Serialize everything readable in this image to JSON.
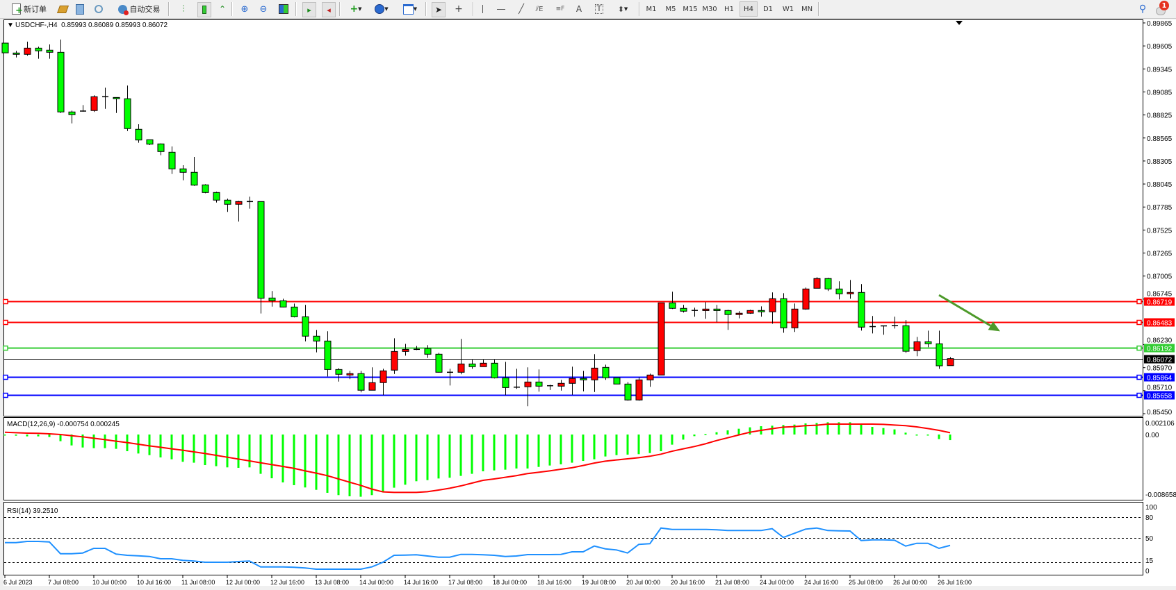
{
  "toolbar": {
    "new_order_label": "新订单",
    "autotrade_label": "自动交易",
    "timeframes": [
      "M1",
      "M5",
      "M15",
      "M30",
      "H1",
      "H4",
      "D1",
      "W1",
      "MN"
    ],
    "active_timeframe": "H4",
    "notification_count": "1",
    "icons": [
      "new-order-icon",
      "history-icon",
      "terminal-icon",
      "signals-icon",
      "autotrade-icon",
      "bar-chart-icon",
      "candlestick-icon",
      "line-chart-icon",
      "zoom-in-icon",
      "zoom-out-icon",
      "tile-windows-icon",
      "chart-shift-icon",
      "autoscroll-icon",
      "indicators-icon",
      "periods-icon",
      "templates-icon",
      "cursor-icon",
      "crosshair-icon",
      "vertical-line-icon",
      "horizontal-line-icon",
      "trendline-icon",
      "equidistant-channel-icon",
      "fibonacci-icon",
      "text-icon",
      "text-label-icon",
      "arrows-icon",
      "search-icon",
      "notification-icon"
    ]
  },
  "chart": {
    "header": "USDCHF-,H4  0.85993 0.86089 0.85993 0.86072",
    "macd_header": "MACD(12,26,9) -0.000754 0.000245",
    "rsi_header": "RSI(14) 39.2510",
    "colors": {
      "bear": "#00ff00",
      "bull": "#ff0000",
      "macd_hist": "#00ff00",
      "macd_signal": "#ff0000",
      "rsi": "#1e90ff",
      "annotation_arrow": "#4d9a2a"
    }
  },
  "chart_data": [
    {
      "type": "candlestick",
      "title": "USDCHF-,H4",
      "ylim": [
        0.8545,
        0.89865
      ],
      "price_ticks": [
        "0.89865",
        "0.89605",
        "0.89345",
        "0.89085",
        "0.88825",
        "0.88565",
        "0.88305",
        "0.88045",
        "0.87785",
        "0.87525",
        "0.87265",
        "0.87005",
        "0.86745",
        "0.86230",
        "0.85970",
        "0.85710",
        "0.85450"
      ],
      "x_tick_labels": [
        "6 Jul 2023",
        "7 Jul 08:00",
        "10 Jul 00:00",
        "10 Jul 16:00",
        "11 Jul 08:00",
        "12 Jul 00:00",
        "12 Jul 16:00",
        "13 Jul 08:00",
        "14 Jul 00:00",
        "14 Jul 16:00",
        "17 Jul 08:00",
        "18 Jul 00:00",
        "18 Jul 16:00",
        "19 Jul 08:00",
        "20 Jul 00:00",
        "20 Jul 16:00",
        "21 Jul 08:00",
        "24 Jul 00:00",
        "24 Jul 16:00",
        "25 Jul 08:00",
        "26 Jul 00:00",
        "26 Jul 16:00"
      ],
      "x_tick_every_bars": 4,
      "ohlc": [
        [
          0.89637,
          0.8964,
          0.89525,
          0.89527
        ],
        [
          0.89525,
          0.89549,
          0.89475,
          0.8951
        ],
        [
          0.8951,
          0.89653,
          0.89494,
          0.8958
        ],
        [
          0.8958,
          0.89596,
          0.8946,
          0.89549
        ],
        [
          0.89557,
          0.89622,
          0.8946,
          0.89533
        ],
        [
          0.89533,
          0.89677,
          0.88848,
          0.88859
        ],
        [
          0.88859,
          0.88874,
          0.8873,
          0.88828
        ],
        [
          0.88869,
          0.88937,
          0.88862,
          0.88866
        ],
        [
          0.88875,
          0.89047,
          0.88859,
          0.89031
        ],
        [
          0.89031,
          0.89133,
          0.88895,
          0.89029
        ],
        [
          0.89023,
          0.89025,
          0.88848,
          0.89008
        ],
        [
          0.89008,
          0.89157,
          0.88644,
          0.88671
        ],
        [
          0.88663,
          0.8872,
          0.88511,
          0.88542
        ],
        [
          0.88545,
          0.88545,
          0.88485,
          0.88495
        ],
        [
          0.88498,
          0.88503,
          0.8837,
          0.88412
        ],
        [
          0.88404,
          0.88469,
          0.88158,
          0.88216
        ],
        [
          0.88216,
          0.88257,
          0.88087,
          0.88177
        ],
        [
          0.88177,
          0.88352,
          0.88024,
          0.88032
        ],
        [
          0.88035,
          0.88043,
          0.87941,
          0.87949
        ],
        [
          0.87949,
          0.87957,
          0.87836,
          0.87863
        ],
        [
          0.87863,
          0.87879,
          0.8773,
          0.87816
        ],
        [
          0.87816,
          0.87855,
          0.8762,
          0.87847
        ],
        [
          0.87847,
          0.87902,
          0.87766,
          0.87845
        ],
        [
          0.87847,
          0.87847,
          0.86582,
          0.86754
        ],
        [
          0.86757,
          0.86836,
          0.8666,
          0.86726
        ],
        [
          0.86726,
          0.86749,
          0.86652,
          0.86655
        ],
        [
          0.86655,
          0.86694,
          0.86538,
          0.86545
        ],
        [
          0.86545,
          0.86679,
          0.86268,
          0.86326
        ],
        [
          0.86326,
          0.86396,
          0.86143,
          0.86271
        ],
        [
          0.86271,
          0.86381,
          0.85871,
          0.85949
        ],
        [
          0.85949,
          0.85965,
          0.85813,
          0.85895
        ],
        [
          0.85887,
          0.85934,
          0.8584,
          0.85903
        ],
        [
          0.85903,
          0.85934,
          0.85691,
          0.85715
        ],
        [
          0.85715,
          0.85973,
          0.85715,
          0.85801
        ],
        [
          0.85801,
          0.85958,
          0.8566,
          0.85934
        ],
        [
          0.85942,
          0.86302,
          0.85899,
          0.86153
        ],
        [
          0.86153,
          0.86239,
          0.86106,
          0.86176
        ],
        [
          0.86176,
          0.86216,
          0.86169,
          0.86177
        ],
        [
          0.86185,
          0.86224,
          0.8608,
          0.86122
        ],
        [
          0.86122,
          0.86138,
          0.85915,
          0.85918
        ],
        [
          0.85918,
          0.85958,
          0.85769,
          0.85915
        ],
        [
          0.85918,
          0.86295,
          0.85895,
          0.86012
        ],
        [
          0.86012,
          0.86059,
          0.85958,
          0.85981
        ],
        [
          0.85981,
          0.86059,
          0.85981,
          0.8602
        ],
        [
          0.8602,
          0.86059,
          0.85848,
          0.85855
        ],
        [
          0.85855,
          0.86036,
          0.8566,
          0.85745
        ],
        [
          0.8575,
          0.85958,
          0.8573,
          0.85748
        ],
        [
          0.85754,
          0.85973,
          0.85534,
          0.85808
        ],
        [
          0.85808,
          0.8595,
          0.85699,
          0.85761
        ],
        [
          0.85766,
          0.85777,
          0.85718,
          0.85764
        ],
        [
          0.85761,
          0.85832,
          0.85711,
          0.85793
        ],
        [
          0.85793,
          0.85981,
          0.85664,
          0.85848
        ],
        [
          0.85848,
          0.85934,
          0.85703,
          0.85832
        ],
        [
          0.85832,
          0.86122,
          0.85695,
          0.85965
        ],
        [
          0.85973,
          0.86004,
          0.85832,
          0.85856
        ],
        [
          0.85856,
          0.85856,
          0.85785,
          0.85785
        ],
        [
          0.85785,
          0.85809,
          0.85597,
          0.85605
        ],
        [
          0.85605,
          0.85863,
          0.85597,
          0.85832
        ],
        [
          0.85832,
          0.85903,
          0.85754,
          0.85887
        ],
        [
          0.85887,
          0.86702,
          0.85887,
          0.86702
        ],
        [
          0.86702,
          0.86828,
          0.86632,
          0.8664
        ],
        [
          0.8664,
          0.86679,
          0.86593,
          0.86608
        ],
        [
          0.86617,
          0.86648,
          0.86546,
          0.86615
        ],
        [
          0.86615,
          0.8671,
          0.86522,
          0.86632
        ],
        [
          0.86632,
          0.86679,
          0.86483,
          0.86615
        ],
        [
          0.86616,
          0.86624,
          0.86397,
          0.8657
        ],
        [
          0.8657,
          0.86609,
          0.86527,
          0.86585
        ],
        [
          0.86585,
          0.86624,
          0.86578,
          0.86616
        ],
        [
          0.86616,
          0.86663,
          0.86546,
          0.86601
        ],
        [
          0.86601,
          0.8682,
          0.86467,
          0.86749
        ],
        [
          0.86749,
          0.86812,
          0.86365,
          0.8642
        ],
        [
          0.8642,
          0.86695,
          0.86373,
          0.86632
        ],
        [
          0.86632,
          0.86875,
          0.86624,
          0.86859
        ],
        [
          0.86867,
          0.86993,
          0.86867,
          0.86977
        ],
        [
          0.86977,
          0.86985,
          0.86836,
          0.86859
        ],
        [
          0.86859,
          0.86946,
          0.86741,
          0.86804
        ],
        [
          0.86804,
          0.86961,
          0.86749,
          0.8682
        ],
        [
          0.8682,
          0.86914,
          0.86389,
          0.86428
        ],
        [
          0.86434,
          0.86554,
          0.86357,
          0.86432
        ],
        [
          0.86442,
          0.86442,
          0.86342,
          0.8644
        ],
        [
          0.86444,
          0.86546,
          0.86412,
          0.86446
        ],
        [
          0.86444,
          0.86509,
          0.86137,
          0.86155
        ],
        [
          0.86162,
          0.86318,
          0.86099,
          0.86263
        ],
        [
          0.86263,
          0.86388,
          0.86201,
          0.8624
        ],
        [
          0.8624,
          0.86388,
          0.85957,
          0.85991
        ],
        [
          0.85993,
          0.86089,
          0.85993,
          0.86072
        ]
      ],
      "horizontal_lines": [
        {
          "price": "0.86719",
          "color": "#ff0000"
        },
        {
          "price": "0.86483",
          "color": "#ff0000"
        },
        {
          "price": "0.86192",
          "color": "#33cc33"
        },
        {
          "price": "0.85864",
          "color": "#0000ff"
        },
        {
          "price": "0.85658",
          "color": "#0000ff"
        }
      ],
      "current_price": "0.86072",
      "annotation_arrow": {
        "from_price": 0.8679,
        "to_price": 0.8638,
        "from_bar": 84,
        "to_bar": 89.5,
        "color": "#4d9a2a"
      }
    },
    {
      "type": "bar+line",
      "title": "MACD(12,26,9)",
      "ylim": [
        -0.008658,
        0.002106
      ],
      "y_tick_labels": [
        "0.002106",
        "0.00",
        "-0.008658"
      ],
      "histogram": [
        -6e-05,
        -0.00016,
        -0.00025,
        -0.00025,
        -0.00034,
        -0.0009,
        -0.00147,
        -0.00175,
        -0.00184,
        -0.00184,
        -0.00193,
        -0.00225,
        -0.00256,
        -0.00278,
        -0.00309,
        -0.00334,
        -0.00368,
        -0.0038,
        -0.00412,
        -0.00427,
        -0.00443,
        -0.00449,
        -0.00443,
        -0.0053,
        -0.0059,
        -0.00646,
        -0.00683,
        -0.00714,
        -0.00746,
        -0.00786,
        -0.00817,
        -0.00833,
        -0.00839,
        -0.00817,
        -0.0077,
        -0.00717,
        -0.00677,
        -0.0063,
        -0.00615,
        -0.00593,
        -0.00583,
        -0.00558,
        -0.0053,
        -0.00496,
        -0.00484,
        -0.00474,
        -0.00458,
        -0.00458,
        -0.00437,
        -0.00418,
        -0.00402,
        -0.0038,
        -0.00356,
        -0.00334,
        -0.00296,
        -0.00278,
        -0.00271,
        -0.00265,
        -0.0025,
        -0.00225,
        -0.00137,
        -0.00069,
        -0.00022,
        6e-05,
        0.00031,
        0.00056,
        0.00078,
        0.00097,
        0.00112,
        0.00119,
        0.00128,
        0.00134,
        0.0015,
        0.00156,
        0.00165,
        0.00165,
        0.00165,
        0.0014,
        0.00103,
        0.00087,
        0.00069,
        0.00025,
        0,
        -6e-05,
        -0.00062,
        -0.000754
      ],
      "signal": [
        0.00031,
        0.00025,
        0.00019,
        0.00016,
        9e-05,
        0,
        -0.00016,
        -0.00031,
        -0.0005,
        -0.00069,
        -0.0009,
        -0.00109,
        -0.00131,
        -0.00153,
        -0.00172,
        -0.00193,
        -0.00212,
        -0.00234,
        -0.00256,
        -0.00281,
        -0.00306,
        -0.00331,
        -0.00356,
        -0.00381,
        -0.00406,
        -0.00431,
        -0.00456,
        -0.0049,
        -0.00521,
        -0.00555,
        -0.00599,
        -0.00643,
        -0.00686,
        -0.00736,
        -0.00774,
        -0.0078,
        -0.0078,
        -0.0078,
        -0.00771,
        -0.00749,
        -0.00724,
        -0.00693,
        -0.00655,
        -0.00618,
        -0.00599,
        -0.00577,
        -0.00555,
        -0.00527,
        -0.00509,
        -0.0049,
        -0.00468,
        -0.00448,
        -0.00418,
        -0.00385,
        -0.00359,
        -0.00343,
        -0.00328,
        -0.00312,
        -0.00293,
        -0.00265,
        -0.00225,
        -0.00193,
        -0.00162,
        -0.00125,
        -0.00081,
        -0.00044,
        -6e-05,
        0.00031,
        0.00056,
        0.00078,
        0.001,
        0.00106,
        0.00119,
        0.00125,
        0.0014,
        0.0014,
        0.0014,
        0.0014,
        0.0014,
        0.00137,
        0.00128,
        0.00119,
        0.00103,
        0.00081,
        0.00056,
        0.000245
      ]
    },
    {
      "type": "line",
      "title": "RSI(14)",
      "ylim": [
        0,
        100
      ],
      "y_tick_labels": [
        "100",
        "80",
        "50",
        "15",
        "0"
      ],
      "levels": [
        80,
        50,
        15
      ],
      "values": [
        43.3,
        43.3,
        45,
        45,
        44.3,
        27.3,
        27.3,
        28.3,
        35,
        35,
        26.7,
        25,
        24.3,
        23.3,
        20,
        20,
        17.7,
        16.7,
        15,
        15,
        15,
        16,
        16.7,
        8.3,
        8.3,
        8.3,
        7.7,
        6.7,
        5,
        5,
        5,
        5,
        5,
        8.3,
        15,
        25,
        25.3,
        25.7,
        24,
        22.3,
        22.3,
        26.3,
        26.3,
        25.7,
        25,
        23.3,
        24,
        26,
        26,
        26,
        26.3,
        30,
        30,
        38.3,
        34.3,
        32.7,
        28.3,
        40.7,
        41.7,
        64.3,
        62.3,
        62.3,
        62.3,
        62.3,
        61.7,
        60.7,
        60.7,
        60.7,
        60.7,
        63.3,
        50.7,
        56.7,
        62.7,
        64.3,
        60.7,
        60.3,
        60,
        46.3,
        47.3,
        47.3,
        46.7,
        38.3,
        42.3,
        42.3,
        35,
        39.25
      ]
    }
  ]
}
